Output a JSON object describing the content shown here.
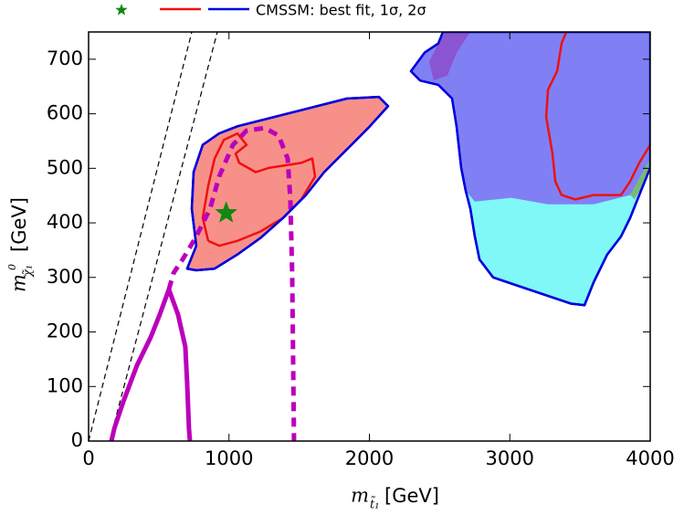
{
  "chart_data": {
    "type": "contour",
    "legend": {
      "label": "CMSSM: best fit, 1σ, 2σ",
      "position": "top"
    },
    "xlabel": {
      "symbol": "m",
      "subscript": "t̃₁",
      "unit": "[GeV]"
    },
    "ylabel": {
      "symbol": "m",
      "subscript": "χ̃₁",
      "superscript": "0",
      "unit": "[GeV]"
    },
    "xlim": [
      0,
      4000
    ],
    "ylim": [
      0,
      750
    ],
    "xticks": [
      0,
      1000,
      2000,
      3000,
      4000
    ],
    "yticks": [
      0,
      100,
      200,
      300,
      400,
      500,
      600,
      700
    ],
    "series": [
      {
        "style": "fill",
        "color": "#0000dd",
        "fill": "#f8908a",
        "in_legend": true,
        "x": [
          702,
          767,
          735,
          748,
          813,
          930,
          1060,
          1320,
          1580,
          1841,
          2068,
          2133,
          2003,
          1841,
          1678,
          1548,
          1385,
          1223,
          1060,
          898,
          767
        ],
        "y": [
          316,
          358,
          426,
          493,
          543,
          564,
          577,
          594,
          611,
          628,
          631,
          614,
          577,
          535,
          493,
          451,
          409,
          372,
          342,
          316,
          313
        ]
      },
      {
        "style": "fill",
        "color": "#0000dd",
        "fill": "#80f8f8",
        "x": [
          2296,
          2393,
          2491,
          2524,
          4000,
          4000,
          3922,
          3857,
          3792,
          3694,
          3597,
          3532,
          3434,
          3272,
          3076,
          2881,
          2784,
          2751,
          2719,
          2686,
          2654,
          2621,
          2589,
          2491,
          2361
        ],
        "y": [
          678,
          712,
          729,
          750,
          750,
          501,
          451,
          409,
          375,
          342,
          291,
          249,
          252,
          266,
          283,
          300,
          333,
          375,
          426,
          459,
          501,
          577,
          628,
          653,
          661
        ]
      },
      {
        "style": "patch",
        "fill": "#8080f4",
        "x": [
          2296,
          2393,
          2491,
          2524,
          4000,
          4000,
          3857,
          3597,
          3272,
          3011,
          2751,
          2686,
          2654,
          2621,
          2589,
          2491,
          2361
        ],
        "y": [
          678,
          712,
          729,
          750,
          750,
          510,
          451,
          434,
          434,
          446,
          439,
          459,
          501,
          577,
          628,
          653,
          661
        ]
      },
      {
        "style": "patch",
        "fill": "#8a55d0",
        "x": [
          2426,
          2491,
          2543,
          2719,
          2621,
          2556,
          2458
        ],
        "y": [
          695,
          729,
          750,
          750,
          712,
          670,
          661
        ]
      },
      {
        "style": "patch",
        "fill": "#77bb77",
        "x": [
          3857,
          4000,
          4000,
          3889
        ],
        "y": [
          451,
          518,
          493,
          443
        ]
      },
      {
        "style": "dashed-thin",
        "color": "#000000",
        "x": [
          0,
          735
        ],
        "y": [
          0,
          750
        ]
      },
      {
        "style": "dashed-thin",
        "color": "#000000",
        "x": [
          150,
          917
        ],
        "y": [
          0,
          750
        ]
      },
      {
        "style": "line",
        "color": "#ee1111",
        "in_legend": true,
        "x": [
          852,
          813,
          852,
          898,
          963,
          1060,
          1125,
          1047,
          1073,
          1190,
          1288,
          1515,
          1593,
          1613,
          1515,
          1385,
          1223,
          1060,
          930,
          852
        ],
        "y": [
          367,
          409,
          468,
          518,
          552,
          564,
          543,
          527,
          510,
          493,
          501,
          510,
          518,
          485,
          443,
          409,
          384,
          367,
          358,
          367
        ]
      },
      {
        "style": "line",
        "color": "#ee1111",
        "x": [
          3402,
          3369,
          3337,
          3272,
          3259,
          3304,
          3324,
          3369,
          3467,
          3597,
          3792,
          3857,
          3922,
          4000
        ],
        "y": [
          750,
          729,
          678,
          644,
          594,
          527,
          476,
          451,
          443,
          451,
          451,
          476,
          510,
          543
        ]
      },
      {
        "style": "thick",
        "color": "#bb00bb",
        "x": [
          163,
          182,
          247,
          345,
          442,
          507,
          572,
          637,
          689,
          702,
          715,
          722
        ],
        "y": [
          0,
          22,
          72,
          139,
          190,
          232,
          278,
          232,
          173,
          106,
          22,
          0
        ]
      },
      {
        "style": "thick-dashed",
        "color": "#bb00bb",
        "x": [
          572,
          605,
          670,
          767,
          865,
          930,
          1028,
          1125,
          1255,
          1353,
          1418,
          1437,
          1450,
          1457,
          1463
        ],
        "y": [
          278,
          308,
          333,
          375,
          426,
          485,
          543,
          569,
          574,
          560,
          518,
          443,
          308,
          140,
          0
        ]
      },
      {
        "style": "star",
        "color": "#118811",
        "in_legend": true,
        "x": [
          980
        ],
        "y": [
          418
        ]
      }
    ]
  }
}
